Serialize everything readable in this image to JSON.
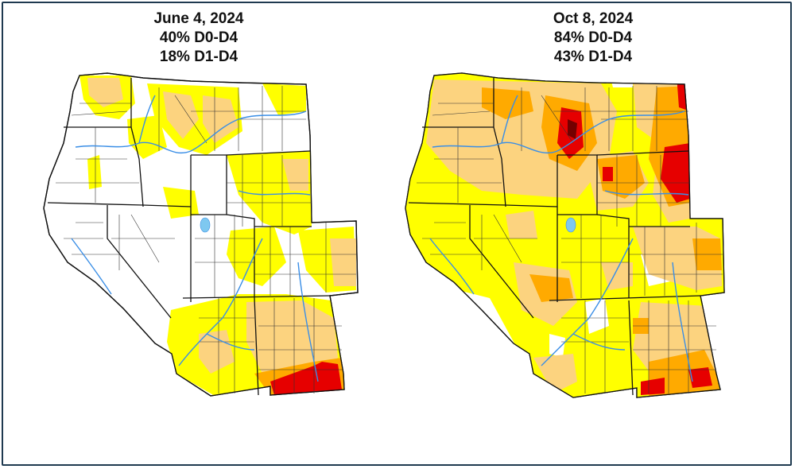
{
  "maps": [
    {
      "date": "June 4, 2024",
      "d0_d4": "40% D0-D4",
      "d1_d4": "18% D1-D4"
    },
    {
      "date": "Oct 8, 2024",
      "d0_d4": "84% D0-D4",
      "d1_d4": "43% D1-D4"
    }
  ],
  "colors": {
    "D0": "#ffff00",
    "D1": "#fcd37f",
    "D2": "#ffaa00",
    "D3": "#e60000",
    "D4": "#730000"
  }
}
